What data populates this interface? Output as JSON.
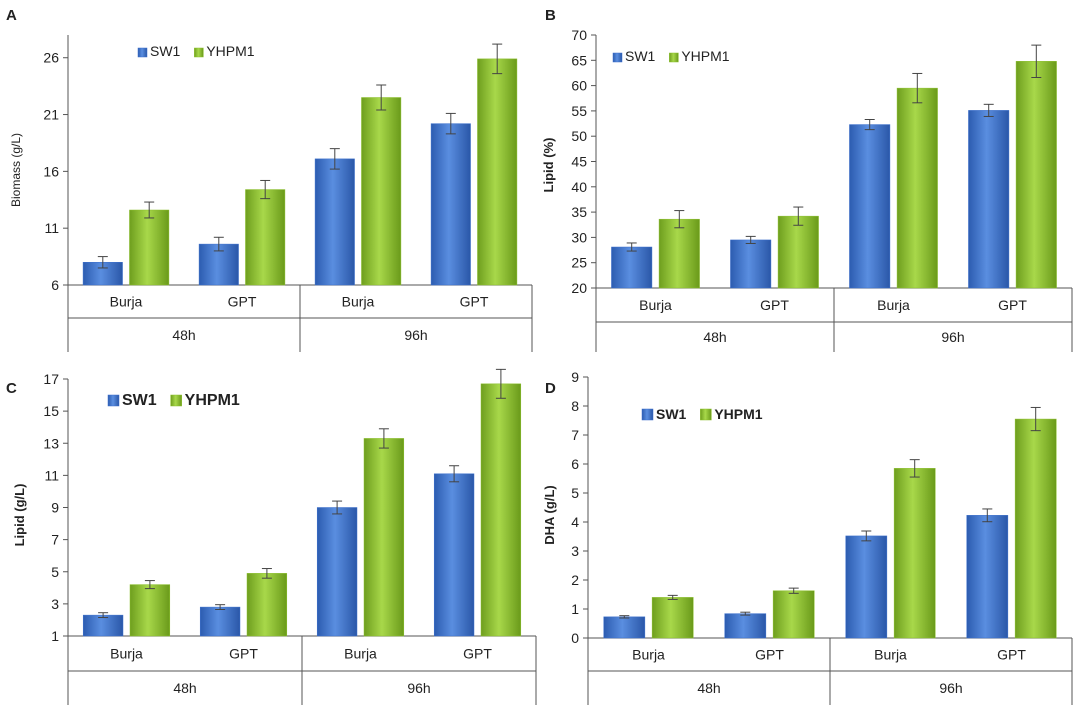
{
  "chart_data": [
    {
      "panel": "A",
      "type": "bar",
      "ylabel": "Biomass (g/L)",
      "ylabel_bold": false,
      "ylim": [
        6,
        28
      ],
      "yticks": [
        6,
        11,
        16,
        21,
        26
      ],
      "groups": [
        "48h",
        "96h"
      ],
      "categories": [
        "Burja",
        "GPT",
        "Burja",
        "GPT"
      ],
      "legend_bold": false,
      "series": [
        {
          "name": "SW1",
          "color": "#3b6fcc",
          "values": [
            8.0,
            9.6,
            17.1,
            20.2
          ],
          "errors": [
            0.5,
            0.6,
            0.9,
            0.9
          ]
        },
        {
          "name": "YHPM1",
          "color": "#8bbf2c",
          "values": [
            12.6,
            14.4,
            22.5,
            25.9
          ],
          "errors": [
            0.7,
            0.8,
            1.1,
            1.3
          ]
        }
      ]
    },
    {
      "panel": "B",
      "type": "bar",
      "ylabel": "Lipid (%)",
      "ylabel_bold": true,
      "ylim": [
        20,
        70
      ],
      "yticks": [
        20,
        25,
        30,
        35,
        40,
        45,
        50,
        55,
        60,
        65,
        70
      ],
      "groups": [
        "48h",
        "96h"
      ],
      "categories": [
        "Burja",
        "GPT",
        "Burja",
        "GPT"
      ],
      "legend_bold": false,
      "series": [
        {
          "name": "SW1",
          "color": "#3b6fcc",
          "values": [
            28.1,
            29.5,
            52.3,
            55.1
          ],
          "errors": [
            0.8,
            0.7,
            1.0,
            1.2
          ]
        },
        {
          "name": "YHPM1",
          "color": "#8bbf2c",
          "values": [
            33.6,
            34.2,
            59.5,
            64.8
          ],
          "errors": [
            1.7,
            1.8,
            2.9,
            3.2
          ]
        }
      ]
    },
    {
      "panel": "C",
      "type": "bar",
      "ylabel": "Lipid (g/L)",
      "ylabel_bold": true,
      "ylim": [
        1,
        17
      ],
      "yticks": [
        1,
        3,
        5,
        7,
        9,
        11,
        13,
        15,
        17
      ],
      "groups": [
        "48h",
        "96h"
      ],
      "categories": [
        "Burja",
        "GPT",
        "Burja",
        "GPT"
      ],
      "legend_bold": true,
      "series": [
        {
          "name": "SW1",
          "color": "#3b6fcc",
          "values": [
            2.3,
            2.8,
            9.0,
            11.1
          ],
          "errors": [
            0.15,
            0.15,
            0.4,
            0.5
          ]
        },
        {
          "name": "YHPM1",
          "color": "#8bbf2c",
          "values": [
            4.2,
            4.9,
            13.3,
            16.7
          ],
          "errors": [
            0.25,
            0.3,
            0.6,
            0.9
          ]
        }
      ]
    },
    {
      "panel": "D",
      "type": "bar",
      "ylabel": "DHA (g/L)",
      "ylabel_bold": true,
      "ylim": [
        0,
        9
      ],
      "yticks": [
        0,
        1,
        2,
        3,
        4,
        5,
        6,
        7,
        8,
        9
      ],
      "groups": [
        "48h",
        "96h"
      ],
      "categories": [
        "Burja",
        "GPT",
        "Burja",
        "GPT"
      ],
      "legend_bold": true,
      "series": [
        {
          "name": "SW1",
          "color": "#3b6fcc",
          "values": [
            0.73,
            0.84,
            3.52,
            4.23
          ],
          "errors": [
            0.04,
            0.05,
            0.17,
            0.22
          ]
        },
        {
          "name": "YHPM1",
          "color": "#8bbf2c",
          "values": [
            1.4,
            1.63,
            5.85,
            7.55
          ],
          "errors": [
            0.07,
            0.09,
            0.3,
            0.4
          ]
        }
      ]
    }
  ]
}
